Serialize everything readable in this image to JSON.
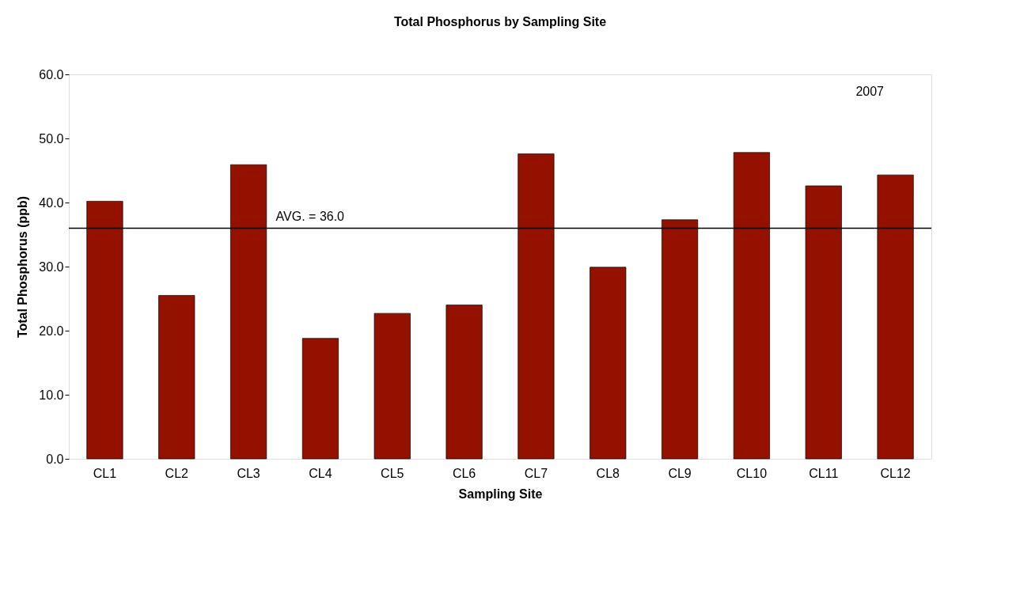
{
  "chart_data": {
    "type": "bar",
    "title": "Total Phosphorus by Sampling Site",
    "xlabel": "Sampling Site",
    "ylabel": "Total Phosphorus (ppb)",
    "categories": [
      "CL1",
      "CL2",
      "CL3",
      "CL4",
      "CL5",
      "CL6",
      "CL7",
      "CL8",
      "CL9",
      "CL10",
      "CL11",
      "CL12"
    ],
    "series": [
      {
        "color": "#941100",
        "values": [
          40.2,
          25.5,
          45.9,
          18.8,
          22.7,
          24.0,
          47.6,
          29.9,
          37.3,
          47.8,
          42.6,
          44.3
        ]
      }
    ],
    "ylim": [
      0,
      60
    ],
    "yticks": [
      {
        "value": 0,
        "label": "0.0"
      },
      {
        "value": 10,
        "label": "10.0"
      },
      {
        "value": 20,
        "label": "20.0"
      },
      {
        "value": 30,
        "label": "30.0"
      },
      {
        "value": 40,
        "label": "40.0"
      },
      {
        "value": 50,
        "label": "50.0"
      },
      {
        "value": 60,
        "label": "60.0"
      }
    ],
    "ref_lines": [
      {
        "axis": "y",
        "value": 36.0,
        "label": "AVG. = 36.0",
        "color": "#000000"
      }
    ],
    "annotations": [
      "2007"
    ],
    "grid": false
  }
}
